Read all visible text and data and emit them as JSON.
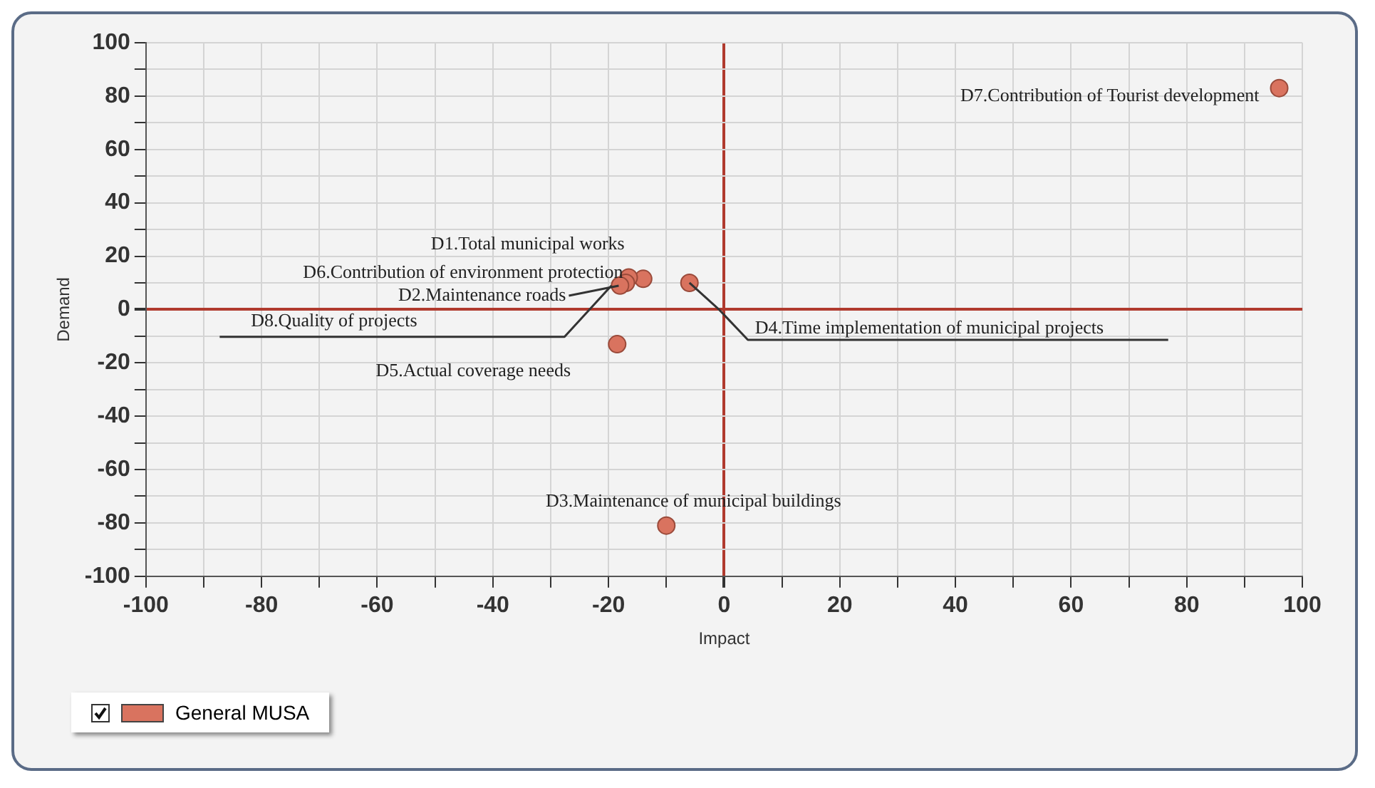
{
  "chart_data": {
    "type": "scatter",
    "xlabel": "Impact",
    "ylabel": "Demand",
    "series": [
      {
        "name": "General MUSA",
        "color": "#d9735f",
        "x": [
          -14,
          -16.5,
          -17,
          -18,
          -6,
          96,
          -10,
          -18.5
        ],
        "values": [
          11.5,
          12,
          10,
          9,
          10,
          83,
          -81,
          -13
        ]
      }
    ],
    "annotations": [
      {
        "text": "D1.Total municipal works",
        "x": -14,
        "y": 11.5
      },
      {
        "text": "D6.Contribution of environment protection",
        "x": -16.5,
        "y": 12
      },
      {
        "text": "D2.Maintenance roads",
        "x": -17,
        "y": 10
      },
      {
        "text": "D8.Quality of projects",
        "x": -18,
        "y": 9
      },
      {
        "text": "D4.Time implementation of municipal projects",
        "x": -6,
        "y": 10
      },
      {
        "text": "D7.Contribution of Tourist development",
        "x": 96,
        "y": 83
      },
      {
        "text": "D3.Maintenance of municipal buildings",
        "x": -10,
        "y": -81
      },
      {
        "text": "D5.Actual coverage needs",
        "x": -18.5,
        "y": -13
      }
    ],
    "xlim": [
      -100,
      100
    ],
    "ylim": [
      -100,
      100
    ],
    "xticks": [
      -100,
      {
        "value": -90,
        "label": null
      },
      -80,
      {
        "value": -70,
        "label": null
      },
      -60,
      {
        "value": -50,
        "label": null
      },
      -40,
      {
        "value": -30,
        "label": null
      },
      -20,
      {
        "value": -10,
        "label": null
      },
      0,
      {
        "value": 10,
        "label": null
      },
      20,
      {
        "value": 30,
        "label": null
      },
      40,
      {
        "value": 50,
        "label": null
      },
      60,
      {
        "value": 70,
        "label": null
      },
      80,
      {
        "value": 90,
        "label": null
      },
      100
    ],
    "yticks": [
      -100,
      {
        "value": -90,
        "label": null
      },
      -80,
      {
        "value": -70,
        "label": null
      },
      -60,
      {
        "value": -50,
        "label": null
      },
      -40,
      {
        "value": -30,
        "label": null
      },
      -20,
      {
        "value": -10,
        "label": null
      },
      0,
      {
        "value": 10,
        "label": null
      },
      20,
      {
        "value": 30,
        "label": null
      },
      40,
      {
        "value": 50,
        "label": null
      },
      60,
      {
        "value": 70,
        "label": null
      },
      80,
      {
        "value": 90,
        "label": null
      },
      100
    ],
    "grid": true,
    "legend": "bottom left",
    "marker": "circle"
  }
}
